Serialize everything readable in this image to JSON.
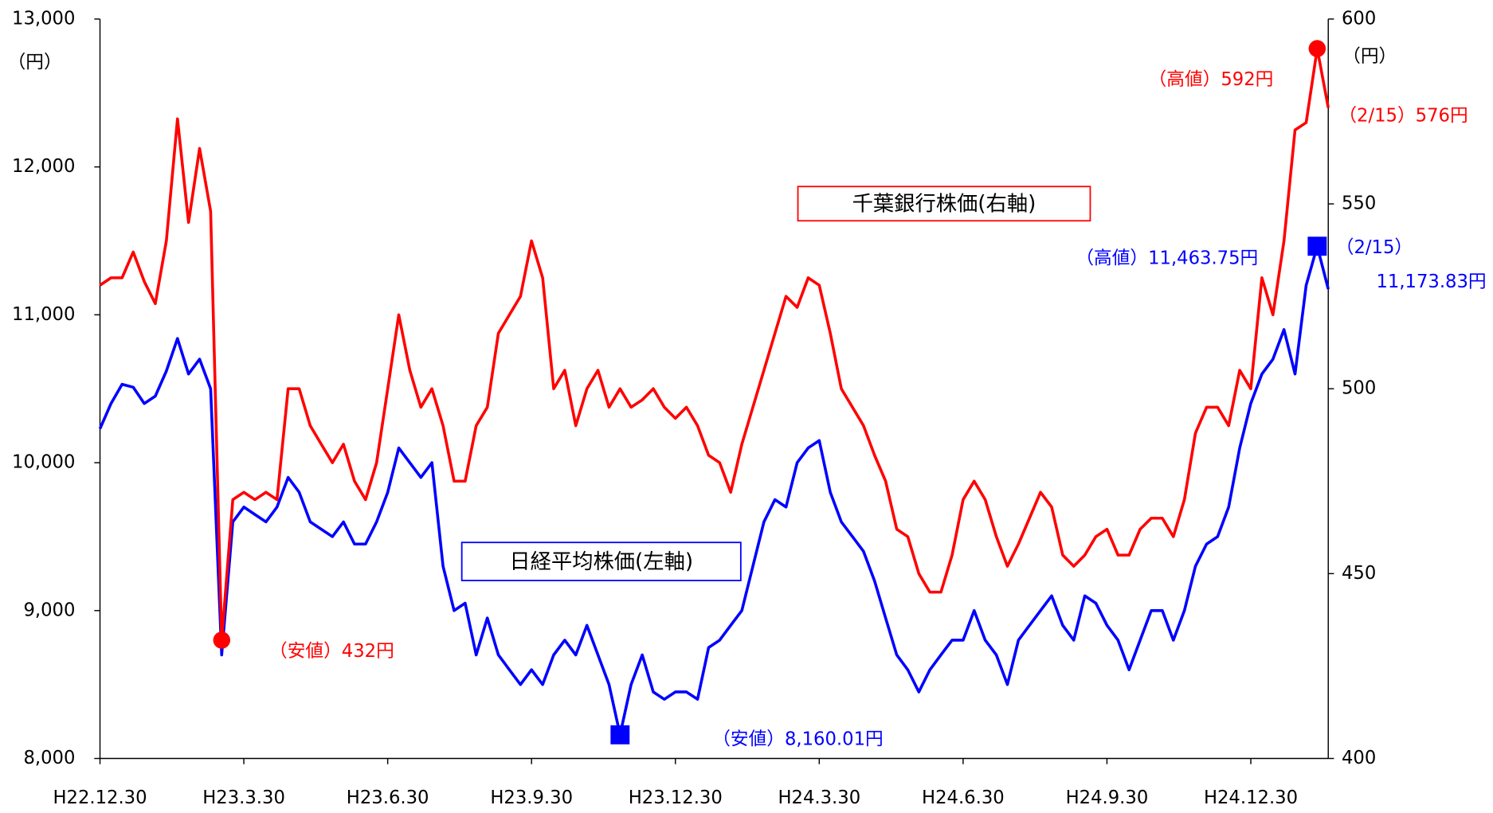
{
  "chart_data": {
    "type": "line",
    "ylabel": "（円）",
    "y2label": "（円）",
    "categories": [
      "H22.12.30",
      null,
      null,
      null,
      null,
      null,
      null,
      null,
      null,
      null,
      null,
      null,
      null,
      "H23.3.30",
      null,
      null,
      null,
      null,
      null,
      null,
      null,
      null,
      null,
      null,
      null,
      null,
      "H23.6.30",
      null,
      null,
      null,
      null,
      null,
      null,
      null,
      null,
      null,
      null,
      null,
      null,
      "H23.9.30",
      null,
      null,
      null,
      null,
      null,
      null,
      null,
      null,
      null,
      null,
      null,
      null,
      "H23.12.30",
      null,
      null,
      null,
      null,
      null,
      null,
      null,
      null,
      null,
      null,
      null,
      null,
      "H24.3.30",
      null,
      null,
      null,
      null,
      null,
      null,
      null,
      null,
      null,
      null,
      null,
      null,
      "H24.6.30",
      null,
      null,
      null,
      null,
      null,
      null,
      null,
      null,
      null,
      null,
      null,
      null,
      "H24.9.30",
      null,
      null,
      null,
      null,
      null,
      null,
      null,
      null,
      null,
      null,
      null,
      null,
      "H24.12.30",
      null,
      null,
      null,
      null,
      null,
      null,
      null
    ],
    "ylim": [
      8000,
      13000
    ],
    "yticks": [
      {
        "value": 8000,
        "label": "8,000"
      },
      {
        "value": 9000,
        "label": "9,000"
      },
      {
        "value": 10000,
        "label": "10,000"
      },
      {
        "value": 11000,
        "label": "11,000"
      },
      {
        "value": 12000,
        "label": "12,000"
      },
      {
        "value": 13000,
        "label": "13,000"
      }
    ],
    "y2lim": [
      400,
      600
    ],
    "y2ticks": [
      400,
      450,
      500,
      550,
      600
    ],
    "series": [
      {
        "name": "日経平均株価(左軸)",
        "color": "#0000ff",
        "axis": "y",
        "marker": "square",
        "values": [
          10230,
          10400,
          10530,
          10510,
          10400,
          10450,
          10620,
          10840,
          10600,
          10700,
          10500,
          8700,
          9600,
          9700,
          9650,
          9600,
          9700,
          9900,
          9800,
          9600,
          9550,
          9500,
          9600,
          9450,
          9450,
          9600,
          9800,
          10100,
          10000,
          9900,
          10000,
          9300,
          9000,
          9050,
          8700,
          8950,
          8700,
          8600,
          8500,
          8600,
          8500,
          8700,
          8800,
          8700,
          8900,
          8700,
          8500,
          8160.01,
          8500,
          8700,
          8450,
          8400,
          8450,
          8450,
          8400,
          8750,
          8800,
          8900,
          9000,
          9300,
          9600,
          9750,
          9700,
          10000,
          10100,
          10150,
          9800,
          9600,
          9500,
          9400,
          9200,
          8950,
          8700,
          8600,
          8450,
          8600,
          8700,
          8800,
          8800,
          9000,
          8800,
          8700,
          8500,
          8800,
          8900,
          9000,
          9100,
          8900,
          8800,
          9100,
          9050,
          8900,
          8800,
          8600,
          8800,
          9000,
          9000,
          8800,
          9000,
          9300,
          9450,
          9500,
          9700,
          10100,
          10400,
          10600,
          10700,
          10900,
          10600,
          11200,
          11463.75,
          11173.83
        ],
        "value_labels": [
          null,
          null,
          null,
          null,
          null,
          null,
          null,
          null,
          null,
          null,
          null,
          null,
          null,
          null,
          null,
          null,
          null,
          null,
          null,
          null,
          null,
          null,
          null,
          null,
          null,
          null,
          null,
          null,
          null,
          null,
          null,
          null,
          null,
          null,
          null,
          null,
          null,
          null,
          null,
          null,
          null,
          null,
          null,
          null,
          null,
          null,
          null,
          "（安値）8,160.01円",
          null,
          null,
          null,
          null,
          null,
          null,
          null,
          null,
          null,
          null,
          null,
          null,
          null,
          null,
          null,
          null,
          null,
          null,
          null,
          null,
          null,
          null,
          null,
          null,
          null,
          null,
          null,
          null,
          null,
          null,
          null,
          null,
          null,
          null,
          null,
          null,
          null,
          null,
          null,
          null,
          null,
          null,
          null,
          null,
          null,
          null,
          null,
          null,
          null,
          null,
          null,
          null,
          null,
          null,
          null,
          null,
          null,
          null,
          null,
          null,
          null,
          null,
          "（高値）11,463.75円",
          [
            "（2/15）",
            "11,173.83円"
          ]
        ]
      },
      {
        "name": "千葉銀行株価(右軸)",
        "color": "#ff0000",
        "axis": "y2",
        "marker": "circle",
        "values": [
          528,
          530,
          530,
          537,
          529,
          523,
          540,
          573,
          545,
          565,
          548,
          432,
          470,
          472,
          470,
          472,
          470,
          500,
          500,
          490,
          485,
          480,
          485,
          475,
          470,
          480,
          500,
          520,
          505,
          495,
          500,
          490,
          475,
          475,
          490,
          495,
          515,
          520,
          525,
          540,
          530,
          500,
          505,
          490,
          500,
          505,
          495,
          500,
          495,
          497,
          500,
          495,
          492,
          495,
          490,
          482,
          480,
          472,
          485,
          495,
          505,
          515,
          525,
          522,
          530,
          528,
          515,
          500,
          495,
          490,
          482,
          475,
          462,
          460,
          450,
          445,
          445,
          455,
          470,
          475,
          470,
          460,
          452,
          458,
          465,
          472,
          468,
          455,
          452,
          455,
          460,
          462,
          455,
          455,
          462,
          465,
          465,
          460,
          470,
          488,
          495,
          495,
          490,
          505,
          500,
          530,
          520,
          540,
          570,
          572,
          592,
          576
        ],
        "value_labels": [
          null,
          null,
          null,
          null,
          null,
          null,
          null,
          null,
          null,
          null,
          null,
          "（安値）432円",
          null,
          null,
          null,
          null,
          null,
          null,
          null,
          null,
          null,
          null,
          null,
          null,
          null,
          null,
          null,
          null,
          null,
          null,
          null,
          null,
          null,
          null,
          null,
          null,
          null,
          null,
          null,
          null,
          null,
          null,
          null,
          null,
          null,
          null,
          null,
          null,
          null,
          null,
          null,
          null,
          null,
          null,
          null,
          null,
          null,
          null,
          null,
          null,
          null,
          null,
          null,
          null,
          null,
          null,
          null,
          null,
          null,
          null,
          null,
          null,
          null,
          null,
          null,
          null,
          null,
          null,
          null,
          null,
          null,
          null,
          null,
          null,
          null,
          null,
          null,
          null,
          null,
          null,
          null,
          null,
          null,
          null,
          null,
          null,
          null,
          null,
          null,
          null,
          null,
          null,
          null,
          null,
          null,
          null,
          null,
          null,
          null,
          null,
          "（高値）592円",
          "（2/15）576円"
        ]
      }
    ]
  }
}
